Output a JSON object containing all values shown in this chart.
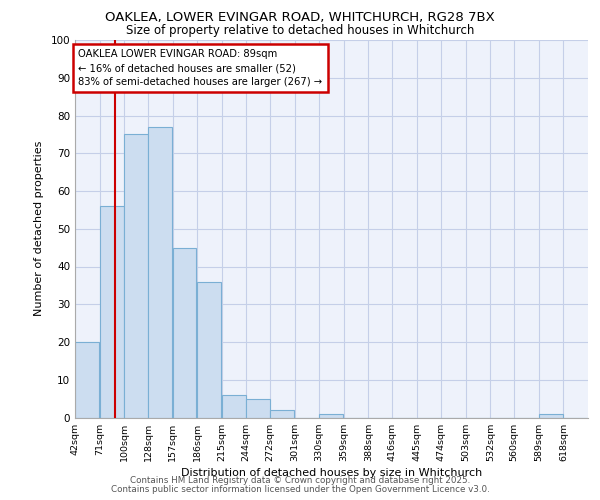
{
  "title1": "OAKLEA, LOWER EVINGAR ROAD, WHITCHURCH, RG28 7BX",
  "title2": "Size of property relative to detached houses in Whitchurch",
  "xlabel": "Distribution of detached houses by size in Whitchurch",
  "ylabel": "Number of detached properties",
  "bar_labels": [
    "42sqm",
    "71sqm",
    "100sqm",
    "128sqm",
    "157sqm",
    "186sqm",
    "215sqm",
    "244sqm",
    "272sqm",
    "301sqm",
    "330sqm",
    "359sqm",
    "388sqm",
    "416sqm",
    "445sqm",
    "474sqm",
    "503sqm",
    "532sqm",
    "560sqm",
    "589sqm",
    "618sqm"
  ],
  "bar_heights": [
    20,
    56,
    75,
    77,
    45,
    36,
    6,
    5,
    2,
    0,
    1,
    0,
    0,
    0,
    0,
    0,
    0,
    0,
    0,
    1,
    0
  ],
  "bar_color": "#ccddf0",
  "bar_edge_color": "#7aafd4",
  "bg_color": "#eef2fb",
  "grid_color": "#c5cfe8",
  "vline_x": 89,
  "vline_color": "#cc0000",
  "annotation_text": "OAKLEA LOWER EVINGAR ROAD: 89sqm\n← 16% of detached houses are smaller (52)\n83% of semi-detached houses are larger (267) →",
  "annotation_box_color": "#ffffff",
  "annotation_box_edge": "#cc0000",
  "footer1": "Contains HM Land Registry data © Crown copyright and database right 2025.",
  "footer2": "Contains public sector information licensed under the Open Government Licence v3.0.",
  "ylim": [
    0,
    100
  ],
  "bin_width": 29
}
